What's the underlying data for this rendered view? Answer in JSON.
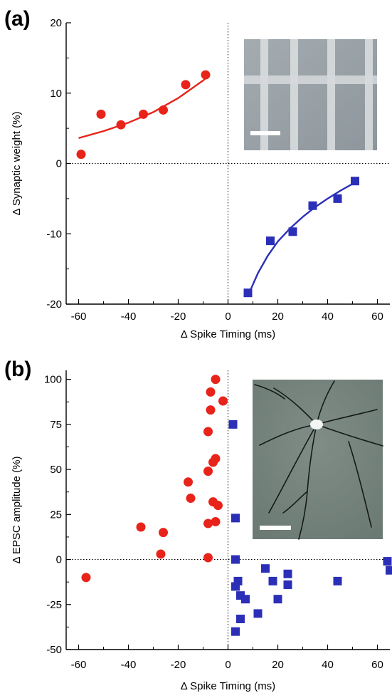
{
  "chart_data": [
    {
      "panel": "(a)",
      "type": "scatter",
      "xlabel": "Δ Spike Timing (ms)",
      "ylabel": "Δ Synaptic weight (%)",
      "xlim": [
        -65,
        65
      ],
      "ylim": [
        -20,
        20
      ],
      "xticks": [
        "-60",
        "-40",
        "-20",
        "0",
        "20",
        "40",
        "60"
      ],
      "yticks": [
        "20",
        "10",
        "0",
        "-10",
        "-20"
      ],
      "reference_lines": {
        "x": 0,
        "y": 0,
        "style": "dotted"
      },
      "inset": "SEM image of crossbar electrode array with white scale bar",
      "series": [
        {
          "marker": "circle",
          "color": "#e8231a",
          "points": [
            {
              "x": -59,
              "y": 1.3
            },
            {
              "x": -51,
              "y": 7.0
            },
            {
              "x": -43,
              "y": 5.5
            },
            {
              "x": -34,
              "y": 7.0
            },
            {
              "x": -26,
              "y": 7.6
            },
            {
              "x": -17,
              "y": 11.2
            },
            {
              "x": -9,
              "y": 12.6
            }
          ],
          "fit": {
            "x": [
              -60,
              -50,
              -40,
              -30,
              -20,
              -10,
              -8
            ],
            "y": [
              3.6,
              4.6,
              5.8,
              7.3,
              9.3,
              11.8,
              12.4
            ]
          }
        },
        {
          "marker": "square",
          "color": "#2b2fb8",
          "points": [
            {
              "x": 8,
              "y": -18.4
            },
            {
              "x": 17,
              "y": -11.0
            },
            {
              "x": 26,
              "y": -9.7
            },
            {
              "x": 34,
              "y": -6.0
            },
            {
              "x": 44,
              "y": -5.0
            },
            {
              "x": 51,
              "y": -2.5
            }
          ],
          "fit": {
            "x": [
              8,
              12,
              16,
              20,
              25,
              30,
              35,
              40,
              45,
              51
            ],
            "y": [
              -18.8,
              -15.6,
              -13.1,
              -11.1,
              -9.2,
              -7.6,
              -6.2,
              -5.0,
              -3.9,
              -2.7
            ]
          }
        }
      ]
    },
    {
      "panel": "(b)",
      "type": "scatter",
      "xlabel": "Δ Spike Timing (ms)",
      "ylabel": "Δ EPSC amplitude (%)",
      "xlim": [
        -65,
        65
      ],
      "ylim": [
        -50,
        105
      ],
      "xticks": [
        "-60",
        "-40",
        "-20",
        "0",
        "20",
        "40",
        "60"
      ],
      "yticks": [
        "100",
        "75",
        "50",
        "25",
        "0",
        "-25",
        "-50"
      ],
      "reference_lines": {
        "x": 0,
        "y": 0,
        "style": "dotted"
      },
      "inset": "Micrograph of a cultured neuron with white scale bar",
      "series": [
        {
          "marker": "circle",
          "color": "#e8231a",
          "points": [
            {
              "x": -57,
              "y": -10
            },
            {
              "x": -35,
              "y": 18
            },
            {
              "x": -27,
              "y": 3
            },
            {
              "x": -26,
              "y": 15
            },
            {
              "x": -16,
              "y": 43
            },
            {
              "x": -15,
              "y": 34
            },
            {
              "x": -8,
              "y": 71
            },
            {
              "x": -8,
              "y": 49
            },
            {
              "x": -8,
              "y": 20
            },
            {
              "x": -8,
              "y": 1
            },
            {
              "x": -7,
              "y": 93
            },
            {
              "x": -7,
              "y": 83
            },
            {
              "x": -6,
              "y": 54
            },
            {
              "x": -6,
              "y": 32
            },
            {
              "x": -5,
              "y": 100
            },
            {
              "x": -5,
              "y": 56
            },
            {
              "x": -5,
              "y": 21
            },
            {
              "x": -4,
              "y": 30
            },
            {
              "x": -2,
              "y": 88
            }
          ]
        },
        {
          "marker": "square",
          "color": "#2b2fb8",
          "points": [
            {
              "x": 2,
              "y": 75
            },
            {
              "x": 3,
              "y": 23
            },
            {
              "x": 3,
              "y": 0
            },
            {
              "x": 3,
              "y": -15
            },
            {
              "x": 3,
              "y": -40
            },
            {
              "x": 4,
              "y": -12
            },
            {
              "x": 5,
              "y": -20
            },
            {
              "x": 5,
              "y": -33
            },
            {
              "x": 7,
              "y": -22
            },
            {
              "x": 12,
              "y": -30
            },
            {
              "x": 15,
              "y": -5
            },
            {
              "x": 18,
              "y": -12
            },
            {
              "x": 20,
              "y": -22
            },
            {
              "x": 24,
              "y": -8
            },
            {
              "x": 24,
              "y": -14
            },
            {
              "x": 44,
              "y": -12
            },
            {
              "x": 64,
              "y": -1
            },
            {
              "x": 65,
              "y": -6
            }
          ]
        }
      ]
    }
  ]
}
